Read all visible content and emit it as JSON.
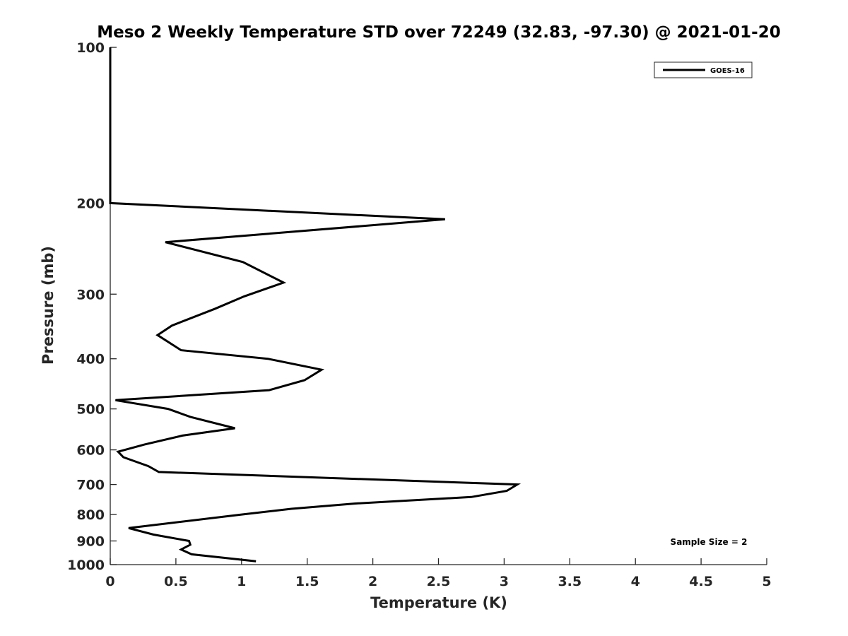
{
  "chart_data": {
    "type": "line",
    "title": "Meso 2 Weekly Temperature STD over 72249 (32.83, -97.30) @ 2021-01-20",
    "xlabel": "Temperature (K)",
    "ylabel": "Pressure (mb)",
    "xlim": [
      0,
      5
    ],
    "ylim": [
      100,
      1000
    ],
    "y_scale": "log",
    "y_reversed": true,
    "x_ticks": [
      0,
      0.5,
      1,
      1.5,
      2,
      2.5,
      3,
      3.5,
      4,
      4.5,
      5
    ],
    "y_ticks": [
      100,
      200,
      300,
      400,
      500,
      600,
      700,
      800,
      900,
      1000
    ],
    "grid": false,
    "legend_position": "top-right",
    "annotation": "Sample Size = 2",
    "series": [
      {
        "name": "GOES-16",
        "color": "#000000",
        "x": [
          0,
          0,
          0,
          2.55,
          0.42,
          1.01,
          1.32,
          1.02,
          0.8,
          0.47,
          0.36,
          0.54,
          1.2,
          1.61,
          1.48,
          1.21,
          0.04,
          0.44,
          0.61,
          0.95,
          0.55,
          0.26,
          0.06,
          0.1,
          0.29,
          0.37,
          3.1,
          3.02,
          2.75,
          1.86,
          1.38,
          1.0,
          0.14,
          0.33,
          0.6,
          0.61,
          0.54,
          0.62,
          1.11
        ],
        "y": [
          100,
          150,
          200,
          215,
          238,
          260,
          285,
          303,
          320,
          345,
          360,
          385,
          400,
          420,
          440,
          460,
          481,
          500,
          518,
          545,
          563,
          586,
          605,
          620,
          645,
          662,
          700,
          720,
          740,
          762,
          780,
          800,
          850,
          875,
          900,
          915,
          935,
          955,
          985
        ]
      }
    ]
  },
  "style": {
    "line_color": "#000000",
    "axis_color": "#262626"
  }
}
